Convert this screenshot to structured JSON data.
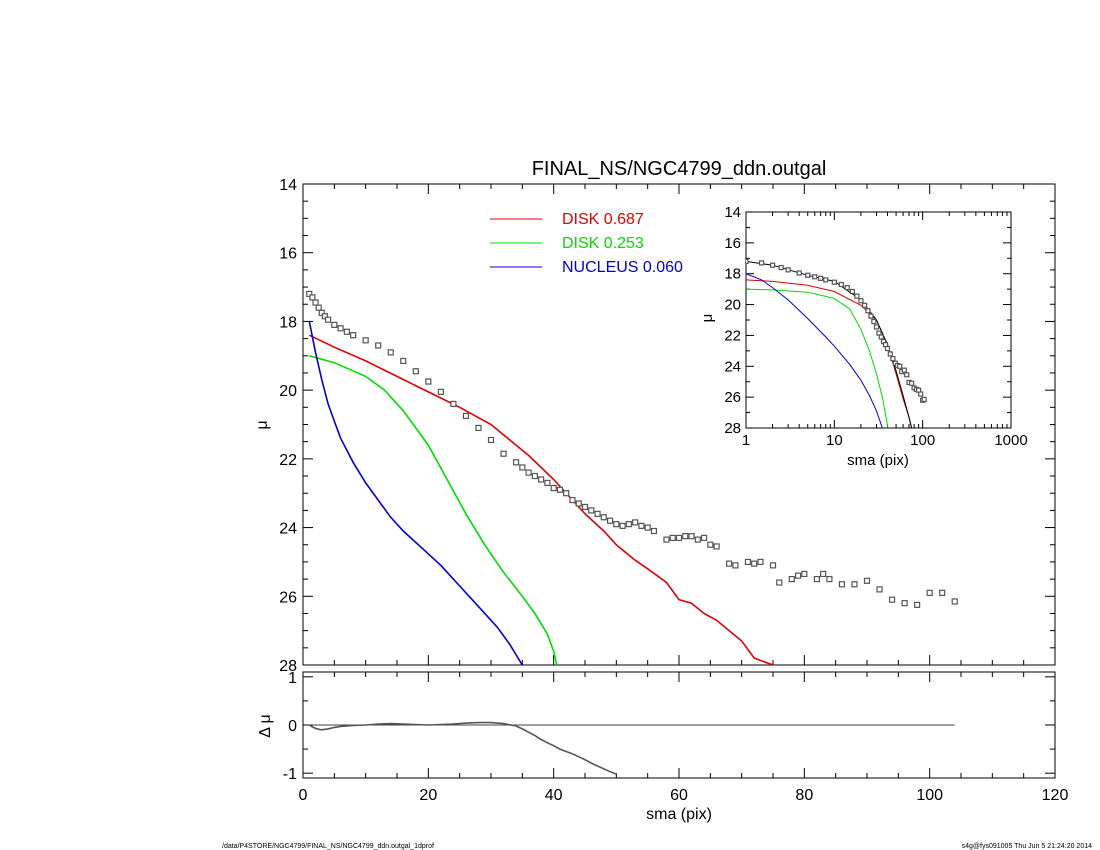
{
  "title": "FINAL_NS/NGC4799_ddn.outgal",
  "footer_left": "/data/P4STORE/NGC4799/FINAL_NS/NGC4799_ddn.outgal_1dprof",
  "footer_right": "s4g@fys091005  Thu Jun  5 21:24:20 2014",
  "colors": {
    "disk1": "#e00000",
    "disk2": "#00dd00",
    "nucleus": "#0000d0",
    "data": "#555555",
    "axis": "#000000"
  },
  "chart_data": [
    {
      "id": "main",
      "type": "line",
      "title": "FINAL_NS/NGC4799_ddn.outgal",
      "xlabel": "",
      "ylabel": "μ",
      "xlim": [
        0,
        120
      ],
      "ylim": [
        28,
        14
      ],
      "y_inverted": true,
      "xticks": [
        "0",
        "20",
        "40",
        "60",
        "80",
        "100",
        "120"
      ],
      "yticks": [
        "14",
        "16",
        "18",
        "20",
        "22",
        "24",
        "26",
        "28"
      ],
      "legend_position": "top-center",
      "legend": [
        {
          "name": "DISK",
          "value": "0.687",
          "color": "#e00000"
        },
        {
          "name": "DISK",
          "value": "0.253",
          "color": "#00dd00"
        },
        {
          "name": "NUCLEUS",
          "value": "0.060",
          "color": "#0000d0"
        }
      ],
      "series": [
        {
          "name": "DISK",
          "color": "#e00000",
          "x": [
            1,
            5,
            10,
            15,
            20,
            25,
            30,
            33,
            36,
            40,
            43,
            45,
            48,
            50,
            53,
            55,
            58,
            60,
            62,
            64,
            66,
            68,
            70,
            72,
            75
          ],
          "y": [
            18.4,
            18.75,
            19.15,
            19.6,
            20.05,
            20.5,
            21.0,
            21.45,
            21.9,
            22.6,
            23.2,
            23.6,
            24.1,
            24.5,
            24.95,
            25.2,
            25.6,
            26.1,
            26.2,
            26.5,
            26.7,
            27.0,
            27.3,
            27.8,
            28.0
          ]
        },
        {
          "name": "DISK",
          "color": "#00dd00",
          "x": [
            1,
            5,
            10,
            13,
            16,
            20,
            23,
            26,
            29,
            32,
            35,
            37,
            39,
            40,
            40.5
          ],
          "y": [
            19.0,
            19.2,
            19.6,
            20.0,
            20.6,
            21.6,
            22.6,
            23.6,
            24.5,
            25.3,
            26.0,
            26.5,
            27.1,
            27.6,
            28.0
          ]
        },
        {
          "name": "NUCLEUS",
          "color": "#0000d0",
          "x": [
            1,
            2,
            3,
            4,
            5,
            6,
            8,
            10,
            12,
            14,
            16,
            19,
            22,
            25,
            28,
            31,
            33,
            35
          ],
          "y": [
            18.0,
            18.9,
            19.7,
            20.4,
            20.9,
            21.4,
            22.1,
            22.7,
            23.2,
            23.7,
            24.1,
            24.6,
            25.1,
            25.7,
            26.3,
            26.9,
            27.4,
            28.0
          ]
        },
        {
          "name": "",
          "type": "scatter",
          "color": "#555555",
          "x": [
            1,
            1.5,
            2,
            2.5,
            3,
            3.5,
            4,
            5,
            6,
            7,
            8,
            10,
            12,
            14,
            16,
            18,
            20,
            22,
            24,
            26,
            28,
            30,
            32,
            34,
            35,
            36,
            37,
            38,
            39,
            40,
            41,
            42,
            43,
            44,
            45,
            46,
            47,
            48,
            49,
            50,
            51,
            52,
            53,
            54,
            55,
            56,
            58,
            59,
            60,
            61,
            62,
            63,
            64,
            65,
            66,
            68,
            69,
            71,
            72,
            73,
            75,
            76,
            78,
            79,
            80,
            82,
            83,
            84,
            86,
            88,
            90,
            92,
            94,
            96,
            98,
            100,
            102,
            104
          ],
          "y": [
            17.2,
            17.3,
            17.45,
            17.6,
            17.75,
            17.85,
            17.95,
            18.1,
            18.2,
            18.3,
            18.4,
            18.55,
            18.7,
            18.9,
            19.15,
            19.45,
            19.75,
            20.05,
            20.4,
            20.75,
            21.1,
            21.45,
            21.85,
            22.1,
            22.25,
            22.4,
            22.5,
            22.6,
            22.7,
            22.85,
            22.9,
            23.0,
            23.2,
            23.3,
            23.4,
            23.5,
            23.6,
            23.7,
            23.8,
            23.9,
            23.95,
            23.9,
            23.85,
            23.95,
            24.0,
            24.1,
            24.35,
            24.3,
            24.3,
            24.25,
            24.25,
            24.35,
            24.3,
            24.5,
            24.55,
            25.05,
            25.1,
            25.0,
            25.05,
            25.0,
            25.1,
            25.6,
            25.5,
            25.4,
            25.35,
            25.5,
            25.35,
            25.5,
            25.65,
            25.65,
            25.55,
            25.8,
            26.1,
            26.2,
            26.25,
            25.9,
            25.9,
            26.15
          ]
        }
      ]
    },
    {
      "id": "residual",
      "type": "scatter",
      "xlabel": "sma (pix)",
      "ylabel": "Δ μ",
      "xlim": [
        0,
        120
      ],
      "ylim": [
        -1.1,
        1.1
      ],
      "xticks": [
        "0",
        "20",
        "40",
        "60",
        "80",
        "100",
        "120"
      ],
      "yticks": [
        "1",
        "0",
        "-1"
      ],
      "zero_line": {
        "x": [
          0,
          104
        ],
        "y": 0
      },
      "series": [
        {
          "name": "",
          "color": "#555555",
          "x": [
            1,
            1.5,
            2,
            2.5,
            3,
            3.5,
            4,
            5,
            6,
            7,
            8,
            10,
            12,
            14,
            16,
            18,
            20,
            22,
            24,
            26,
            28,
            30,
            32,
            34,
            35,
            36,
            37,
            38,
            39,
            40,
            41,
            42,
            43,
            44,
            45,
            46,
            47,
            48,
            49,
            50
          ],
          "y": [
            0.0,
            -0.04,
            -0.07,
            -0.09,
            -0.1,
            -0.09,
            -0.08,
            -0.05,
            -0.03,
            -0.02,
            -0.01,
            0.0,
            0.02,
            0.03,
            0.02,
            0.01,
            0.0,
            0.01,
            0.02,
            0.04,
            0.05,
            0.05,
            0.03,
            -0.02,
            -0.08,
            -0.15,
            -0.22,
            -0.3,
            -0.37,
            -0.43,
            -0.5,
            -0.55,
            -0.6,
            -0.66,
            -0.72,
            -0.79,
            -0.85,
            -0.91,
            -0.97,
            -1.02
          ]
        }
      ]
    },
    {
      "id": "inset",
      "type": "line",
      "xscale": "log",
      "xlabel": "sma (pix)",
      "ylabel": "μ",
      "xlim": [
        1,
        1000
      ],
      "ylim": [
        28,
        14
      ],
      "y_inverted": true,
      "xticks": [
        "1",
        "10",
        "100",
        "1000"
      ],
      "yticks": [
        "14",
        "16",
        "18",
        "20",
        "22",
        "24",
        "26",
        "28"
      ],
      "series": [
        {
          "name": "DISK",
          "color": "#e00000",
          "x": [
            1,
            2,
            5,
            10,
            20,
            30,
            40,
            50,
            60,
            70,
            75
          ],
          "y": [
            18.4,
            18.5,
            18.75,
            19.15,
            20.05,
            21.0,
            22.6,
            24.5,
            26.1,
            27.3,
            28.0
          ]
        },
        {
          "name": "DISK",
          "color": "#00dd00",
          "x": [
            1,
            2,
            5,
            10,
            15,
            20,
            25,
            30,
            35,
            40.5
          ],
          "y": [
            19.0,
            19.05,
            19.2,
            19.6,
            20.3,
            21.6,
            23.0,
            24.5,
            26.0,
            28.0
          ]
        },
        {
          "name": "NUCLEUS",
          "color": "#0000d0",
          "x": [
            1,
            1.5,
            2,
            3,
            5,
            8,
            10,
            15,
            20,
            25,
            30,
            35
          ],
          "y": [
            18.0,
            18.4,
            18.9,
            19.7,
            20.9,
            22.1,
            22.7,
            23.9,
            24.9,
            25.9,
            26.9,
            28.0
          ]
        },
        {
          "name": "",
          "color": "#000000",
          "x": [
            1,
            2,
            5,
            10,
            20,
            30,
            40,
            50,
            60,
            70,
            75
          ],
          "y": [
            17.2,
            17.45,
            18.1,
            18.5,
            19.7,
            21.0,
            22.6,
            24.3,
            25.9,
            27.3,
            28.0
          ]
        },
        {
          "name": "",
          "type": "scatter",
          "color": "#555555",
          "x": [
            1,
            1.5,
            2,
            2.5,
            3,
            4,
            5,
            6,
            7,
            8,
            10,
            12,
            14,
            16,
            18,
            20,
            22,
            24,
            26,
            28,
            30,
            32,
            34,
            36,
            38,
            40,
            43,
            46,
            49,
            52,
            55,
            58,
            62,
            66,
            70,
            75,
            80,
            85,
            90,
            95,
            100,
            104
          ],
          "y": [
            17.2,
            17.3,
            17.45,
            17.6,
            17.75,
            17.95,
            18.1,
            18.2,
            18.3,
            18.4,
            18.55,
            18.7,
            18.9,
            19.15,
            19.45,
            19.75,
            20.05,
            20.4,
            20.75,
            21.1,
            21.45,
            21.85,
            22.1,
            22.4,
            22.6,
            22.85,
            23.2,
            23.5,
            23.8,
            23.95,
            24.0,
            24.35,
            24.25,
            24.55,
            25.05,
            25.1,
            25.4,
            25.5,
            25.55,
            25.8,
            26.2,
            26.15
          ]
        }
      ]
    }
  ]
}
